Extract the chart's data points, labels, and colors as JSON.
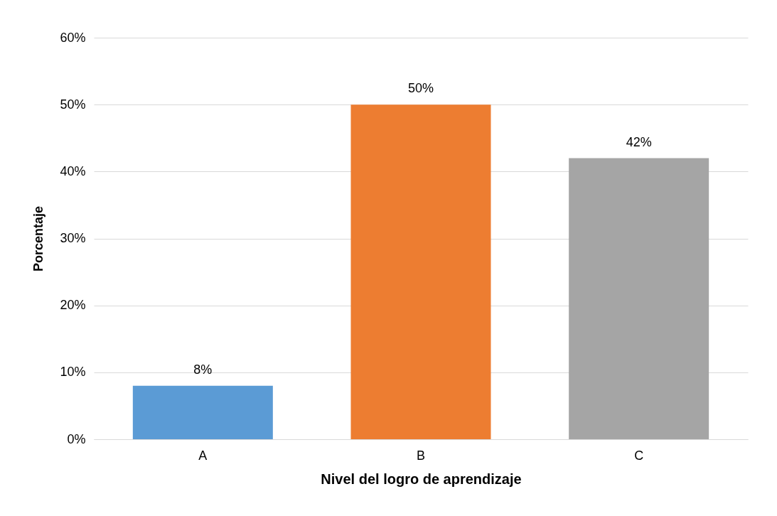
{
  "chart_data": {
    "type": "bar",
    "xlabel": "Nivel del logro de aprendizaje",
    "ylabel": "Porcentaje",
    "categories": [
      "A",
      "B",
      "C"
    ],
    "values": [
      8,
      50,
      42
    ],
    "colors": [
      "#5b9bd5",
      "#ed7d31",
      "#a5a5a5"
    ],
    "value_labels": [
      "8%",
      "50%",
      "42%"
    ],
    "ylim": [
      0,
      60
    ],
    "yticks": [
      {
        "value": 0,
        "label": "0%"
      },
      {
        "value": 10,
        "label": "10%"
      },
      {
        "value": 20,
        "label": "20%"
      },
      {
        "value": 30,
        "label": "30%"
      },
      {
        "value": 40,
        "label": "40%"
      },
      {
        "value": 50,
        "label": "50%"
      },
      {
        "value": 60,
        "label": "60%"
      }
    ],
    "grid": "y"
  }
}
